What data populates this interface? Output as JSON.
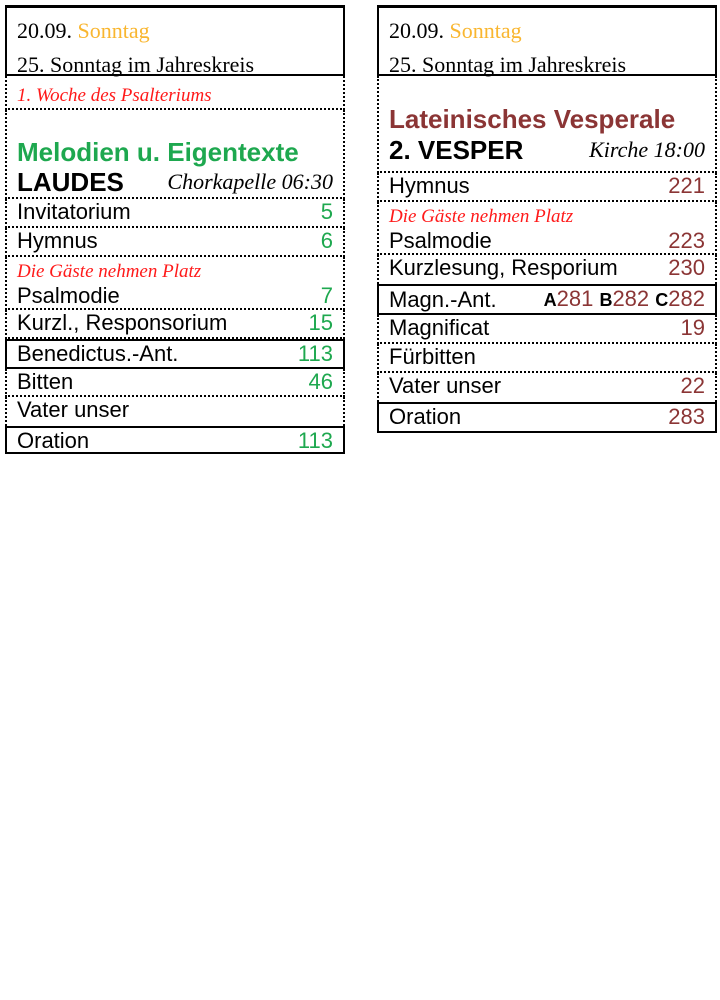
{
  "left": {
    "date": "20.09.",
    "day": "Sonntag",
    "feast": "25. Sonntag im Jahreskreis",
    "week_note": "1. Woche des Psalteriums",
    "section_title": "Melodien u. Eigentexte",
    "hour": "LAUDES",
    "place_time": "Chorkapelle 06:30",
    "guest_note": "Die Gäste nehmen Platz",
    "items": [
      {
        "label": "Invitatorium",
        "page": "5"
      },
      {
        "label": "Hymnus",
        "page": "6"
      },
      {
        "label": "Psalmodie",
        "page": "7"
      },
      {
        "label": "Kurzl., Responsorium",
        "page": "15"
      },
      {
        "label": "Benedictus.-Ant.",
        "page": "113"
      },
      {
        "label": "Bitten",
        "page": "46"
      },
      {
        "label": "Vater unser",
        "page": ""
      },
      {
        "label": "Oration",
        "page": "113"
      }
    ]
  },
  "right": {
    "date": "20.09.",
    "day": "Sonntag",
    "feast": "25. Sonntag im Jahreskreis",
    "section_title": "Lateinisches Vesperale",
    "hour": "2. VESPER",
    "place_time": "Kirche 18:00",
    "guest_note": "Die Gäste nehmen Platz",
    "items": [
      {
        "label": "Hymnus",
        "page": "221"
      },
      {
        "label": "Psalmodie",
        "page": "223"
      },
      {
        "label": "Kurzlesung, Resporium",
        "page": "230"
      },
      {
        "label": "Magn.-Ant.",
        "variants": [
          {
            "year": "A",
            "page": "281"
          },
          {
            "year": "B",
            "page": "282"
          },
          {
            "year": "C",
            "page": "282"
          }
        ]
      },
      {
        "label": "Magnificat",
        "page": "19"
      },
      {
        "label": "Fürbitten",
        "page": ""
      },
      {
        "label": "Vater unser",
        "page": "22"
      },
      {
        "label": "Oration",
        "page": "283"
      }
    ]
  },
  "colors": {
    "day": "#f9b630",
    "laudes_accent": "#1ea84f",
    "vesper_accent": "#8b3535",
    "note": "#ff1a1a"
  }
}
